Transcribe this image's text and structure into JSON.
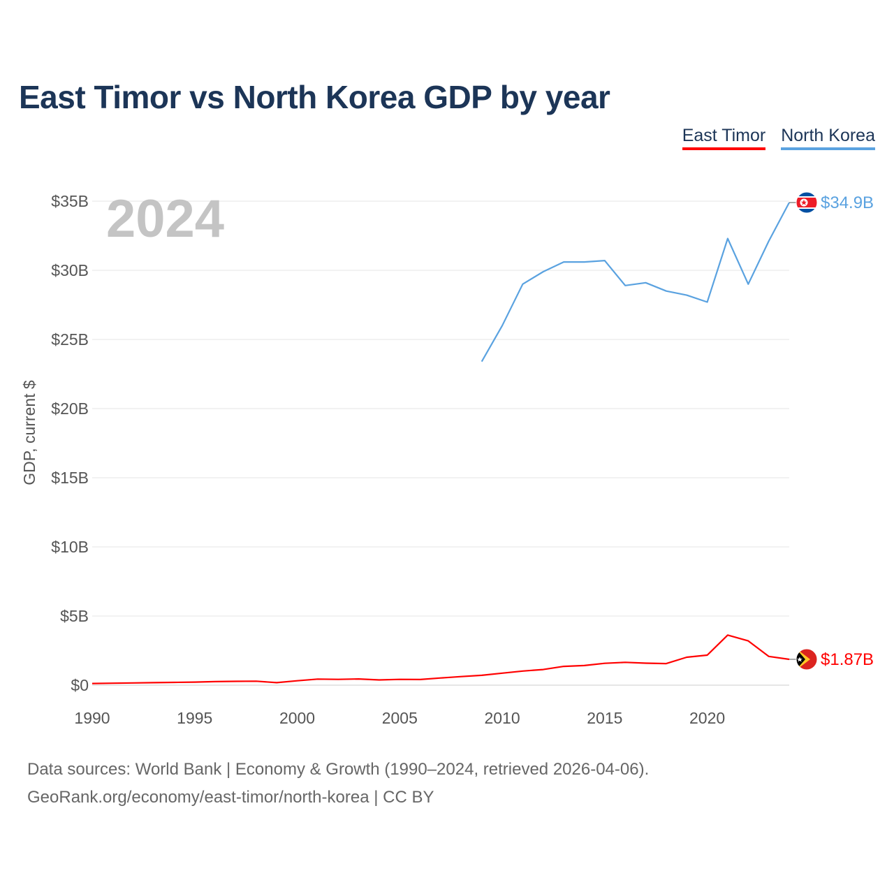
{
  "title": "East Timor vs North Korea GDP by year",
  "legend": {
    "east_timor": "East Timor",
    "north_korea": "North Korea"
  },
  "footer": {
    "line1": "Data sources: World Bank | Economy & Growth (1990–2024, retrieved 2026-04-06).",
    "line2": "GeoRank.org/economy/east-timor/north-korea | CC BY"
  },
  "chart_data": {
    "type": "line",
    "title": "East Timor vs North Korea GDP by year",
    "ylabel": "GDP, current $",
    "xlabel": "",
    "year_label": "2024",
    "xlim": [
      1990,
      2024
    ],
    "ylim": [
      0,
      35
    ],
    "x_ticks": [
      {
        "value": 1990,
        "label": "1990"
      },
      {
        "value": 1995,
        "label": "1995"
      },
      {
        "value": 2000,
        "label": "2000"
      },
      {
        "value": 2005,
        "label": "2005"
      },
      {
        "value": 2010,
        "label": "2010"
      },
      {
        "value": 2015,
        "label": "2015"
      },
      {
        "value": 2020,
        "label": "2020"
      }
    ],
    "y_ticks": [
      {
        "value": 0,
        "label": "$0"
      },
      {
        "value": 5,
        "label": "$5B"
      },
      {
        "value": 10,
        "label": "$10B"
      },
      {
        "value": 15,
        "label": "$15B"
      },
      {
        "value": 20,
        "label": "$20B"
      },
      {
        "value": 25,
        "label": "$25B"
      },
      {
        "value": 30,
        "label": "$30B"
      },
      {
        "value": 35,
        "label": "$35B"
      }
    ],
    "series": [
      {
        "name": "North Korea",
        "color": "#5aa2e0",
        "end_label": "$34.9B",
        "flag": "north-korea-flag",
        "points": [
          [
            2009,
            23.4
          ],
          [
            2010,
            26.0
          ],
          [
            2011,
            29.0
          ],
          [
            2012,
            29.9
          ],
          [
            2013,
            30.6
          ],
          [
            2014,
            30.6
          ],
          [
            2015,
            30.7
          ],
          [
            2016,
            28.9
          ],
          [
            2017,
            29.1
          ],
          [
            2018,
            28.5
          ],
          [
            2019,
            28.2
          ],
          [
            2020,
            27.7
          ],
          [
            2021,
            32.3
          ],
          [
            2022,
            29.0
          ],
          [
            2023,
            32.1
          ],
          [
            2024,
            34.9
          ]
        ]
      },
      {
        "name": "East Timor",
        "color": "#ff0000",
        "end_label": "$1.87B",
        "flag": "east-timor-flag",
        "points": [
          [
            1990,
            0.12
          ],
          [
            1991,
            0.14
          ],
          [
            1992,
            0.16
          ],
          [
            1993,
            0.18
          ],
          [
            1994,
            0.2
          ],
          [
            1995,
            0.22
          ],
          [
            1996,
            0.26
          ],
          [
            1997,
            0.28
          ],
          [
            1998,
            0.29
          ],
          [
            1999,
            0.18
          ],
          [
            2000,
            0.32
          ],
          [
            2001,
            0.44
          ],
          [
            2002,
            0.42
          ],
          [
            2003,
            0.45
          ],
          [
            2004,
            0.38
          ],
          [
            2005,
            0.42
          ],
          [
            2006,
            0.41
          ],
          [
            2007,
            0.52
          ],
          [
            2008,
            0.62
          ],
          [
            2009,
            0.71
          ],
          [
            2010,
            0.87
          ],
          [
            2011,
            1.02
          ],
          [
            2012,
            1.13
          ],
          [
            2013,
            1.36
          ],
          [
            2014,
            1.42
          ],
          [
            2015,
            1.58
          ],
          [
            2016,
            1.65
          ],
          [
            2017,
            1.59
          ],
          [
            2018,
            1.56
          ],
          [
            2019,
            2.02
          ],
          [
            2020,
            2.17
          ],
          [
            2021,
            3.62
          ],
          [
            2022,
            3.2
          ],
          [
            2023,
            2.08
          ],
          [
            2024,
            1.87
          ]
        ]
      }
    ]
  }
}
